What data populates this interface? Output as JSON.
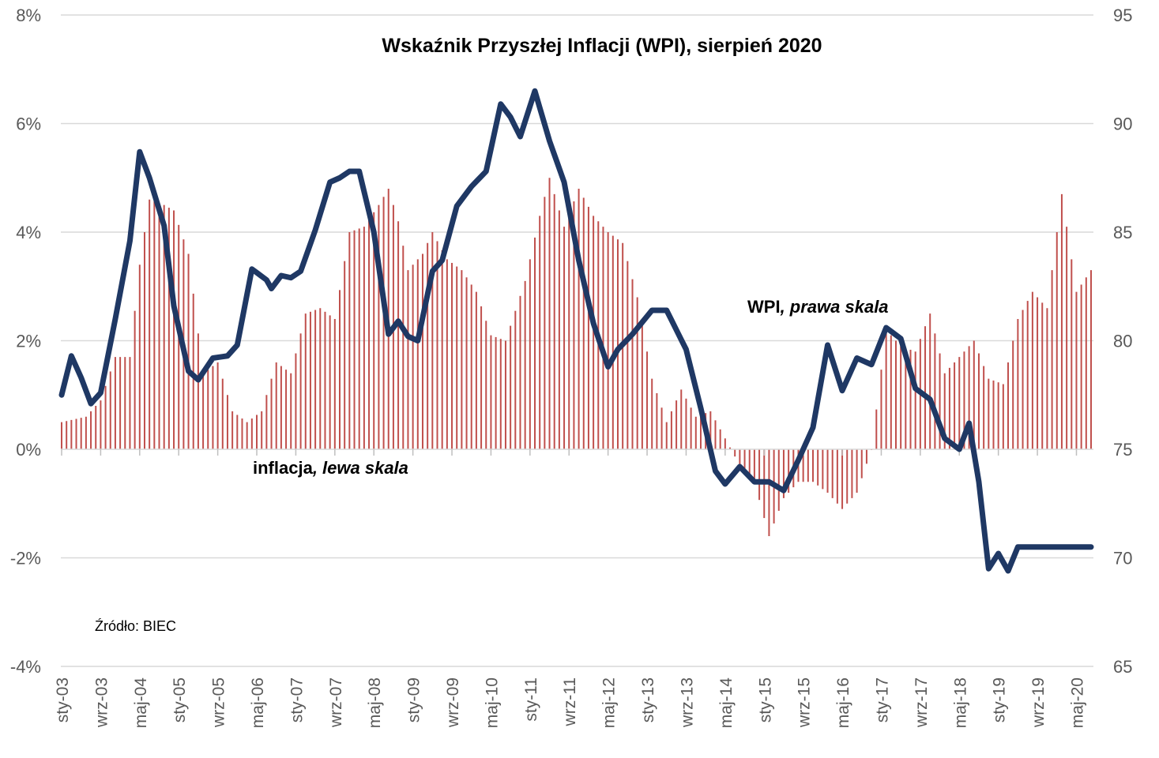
{
  "chart_data": {
    "type": "bar+line",
    "title": "Wskaźnik Przyszłej Inflacji (WPI), sierpień 2020",
    "source_label": "Źródło: BIEC",
    "series_labels": [
      {
        "name": "WPI",
        "suffix": ", prawa skala"
      },
      {
        "name": "inflacja",
        "suffix": ", lewa skala"
      }
    ],
    "y_left": {
      "min": -4,
      "max": 8,
      "step": 2,
      "ticks": [
        "-4%",
        "-2%",
        "0%",
        "2%",
        "4%",
        "6%",
        "8%"
      ]
    },
    "y_right": {
      "min": 65,
      "max": 95,
      "step": 5,
      "ticks": [
        "65",
        "70",
        "75",
        "80",
        "85",
        "90",
        "95"
      ]
    },
    "x_start": "2003-01",
    "x_end": "2020-08",
    "x_tick_labels": [
      "sty-03",
      "wrz-03",
      "maj-04",
      "sty-05",
      "wrz-05",
      "maj-06",
      "sty-07",
      "wrz-07",
      "maj-08",
      "sty-09",
      "wrz-09",
      "maj-10",
      "sty-11",
      "wrz-11",
      "maj-12",
      "sty-13",
      "wrz-13",
      "maj-14",
      "sty-15",
      "wrz-15",
      "maj-16",
      "sty-17",
      "wrz-17",
      "maj-18",
      "sty-19",
      "wrz-19",
      "maj-20"
    ],
    "inflation_anchors": [
      [
        "2003-01",
        0.5
      ],
      [
        "2003-06",
        0.6
      ],
      [
        "2003-09",
        0.9
      ],
      [
        "2003-12",
        1.7
      ],
      [
        "2004-03",
        1.7
      ],
      [
        "2004-05",
        3.4
      ],
      [
        "2004-07",
        4.6
      ],
      [
        "2004-10",
        4.5
      ],
      [
        "2004-12",
        4.4
      ],
      [
        "2005-03",
        3.6
      ],
      [
        "2005-06",
        1.4
      ],
      [
        "2005-09",
        1.6
      ],
      [
        "2005-12",
        0.7
      ],
      [
        "2006-03",
        0.5
      ],
      [
        "2006-06",
        0.7
      ],
      [
        "2006-09",
        1.6
      ],
      [
        "2006-12",
        1.4
      ],
      [
        "2007-03",
        2.5
      ],
      [
        "2007-06",
        2.6
      ],
      [
        "2007-09",
        2.4
      ],
      [
        "2007-12",
        4.0
      ],
      [
        "2008-03",
        4.1
      ],
      [
        "2008-06",
        4.5
      ],
      [
        "2008-08",
        4.8
      ],
      [
        "2008-10",
        4.2
      ],
      [
        "2008-12",
        3.3
      ],
      [
        "2009-03",
        3.6
      ],
      [
        "2009-05",
        4.0
      ],
      [
        "2009-08",
        3.5
      ],
      [
        "2009-11",
        3.3
      ],
      [
        "2010-02",
        2.9
      ],
      [
        "2010-05",
        2.1
      ],
      [
        "2010-08",
        2.0
      ],
      [
        "2010-12",
        3.1
      ],
      [
        "2011-03",
        4.3
      ],
      [
        "2011-05",
        5.0
      ],
      [
        "2011-08",
        4.1
      ],
      [
        "2011-11",
        4.8
      ],
      [
        "2012-02",
        4.3
      ],
      [
        "2012-05",
        4.0
      ],
      [
        "2012-08",
        3.8
      ],
      [
        "2012-11",
        2.8
      ],
      [
        "2013-02",
        1.3
      ],
      [
        "2013-05",
        0.5
      ],
      [
        "2013-08",
        1.1
      ],
      [
        "2013-11",
        0.6
      ],
      [
        "2014-02",
        0.7
      ],
      [
        "2014-05",
        0.2
      ],
      [
        "2014-08",
        -0.3
      ],
      [
        "2014-11",
        -0.6
      ],
      [
        "2015-02",
        -1.6
      ],
      [
        "2015-05",
        -0.9
      ],
      [
        "2015-08",
        -0.6
      ],
      [
        "2015-11",
        -0.6
      ],
      [
        "2016-02",
        -0.8
      ],
      [
        "2016-05",
        -1.1
      ],
      [
        "2016-08",
        -0.8
      ],
      [
        "2016-11",
        0.0
      ],
      [
        "2017-02",
        2.2
      ],
      [
        "2017-05",
        1.9
      ],
      [
        "2017-08",
        1.8
      ],
      [
        "2017-11",
        2.5
      ],
      [
        "2018-02",
        1.4
      ],
      [
        "2018-05",
        1.7
      ],
      [
        "2018-08",
        2.0
      ],
      [
        "2018-11",
        1.3
      ],
      [
        "2019-02",
        1.2
      ],
      [
        "2019-05",
        2.4
      ],
      [
        "2019-08",
        2.9
      ],
      [
        "2019-11",
        2.6
      ],
      [
        "2020-02",
        4.7
      ],
      [
        "2020-05",
        2.9
      ],
      [
        "2020-08",
        3.3
      ]
    ],
    "wpi_anchors": [
      [
        "2003-01",
        77.5
      ],
      [
        "2003-03",
        79.3
      ],
      [
        "2003-05",
        78.3
      ],
      [
        "2003-07",
        77.1
      ],
      [
        "2003-09",
        77.6
      ],
      [
        "2003-12",
        81.0
      ],
      [
        "2004-03",
        84.6
      ],
      [
        "2004-05",
        88.7
      ],
      [
        "2004-07",
        87.5
      ],
      [
        "2004-10",
        85.3
      ],
      [
        "2004-12",
        81.6
      ],
      [
        "2005-03",
        78.6
      ],
      [
        "2005-05",
        78.2
      ],
      [
        "2005-08",
        79.2
      ],
      [
        "2005-11",
        79.3
      ],
      [
        "2006-01",
        79.8
      ],
      [
        "2006-04",
        83.3
      ],
      [
        "2006-07",
        82.8
      ],
      [
        "2006-08",
        82.4
      ],
      [
        "2006-10",
        83.0
      ],
      [
        "2006-12",
        82.9
      ],
      [
        "2007-02",
        83.2
      ],
      [
        "2007-05",
        85.1
      ],
      [
        "2007-08",
        87.3
      ],
      [
        "2007-10",
        87.5
      ],
      [
        "2007-12",
        87.8
      ],
      [
        "2008-02",
        87.8
      ],
      [
        "2008-05",
        85.0
      ],
      [
        "2008-08",
        80.3
      ],
      [
        "2008-10",
        80.9
      ],
      [
        "2008-12",
        80.2
      ],
      [
        "2009-02",
        80.0
      ],
      [
        "2009-05",
        83.2
      ],
      [
        "2009-07",
        83.7
      ],
      [
        "2009-10",
        86.2
      ],
      [
        "2010-01",
        87.1
      ],
      [
        "2010-04",
        87.8
      ],
      [
        "2010-07",
        90.9
      ],
      [
        "2010-09",
        90.3
      ],
      [
        "2010-11",
        89.4
      ],
      [
        "2011-02",
        91.5
      ],
      [
        "2011-05",
        89.2
      ],
      [
        "2011-08",
        87.3
      ],
      [
        "2011-11",
        83.7
      ],
      [
        "2012-02",
        80.8
      ],
      [
        "2012-05",
        78.8
      ],
      [
        "2012-07",
        79.6
      ],
      [
        "2012-10",
        80.3
      ],
      [
        "2013-02",
        81.4
      ],
      [
        "2013-05",
        81.4
      ],
      [
        "2013-09",
        79.6
      ],
      [
        "2013-12",
        76.9
      ],
      [
        "2014-03",
        74.0
      ],
      [
        "2014-05",
        73.4
      ],
      [
        "2014-08",
        74.2
      ],
      [
        "2014-11",
        73.5
      ],
      [
        "2015-02",
        73.5
      ],
      [
        "2015-05",
        73.1
      ],
      [
        "2015-08",
        74.5
      ],
      [
        "2015-11",
        76.0
      ],
      [
        "2016-02",
        79.8
      ],
      [
        "2016-05",
        77.7
      ],
      [
        "2016-08",
        79.2
      ],
      [
        "2016-11",
        78.9
      ],
      [
        "2017-02",
        80.6
      ],
      [
        "2017-05",
        80.1
      ],
      [
        "2017-08",
        77.8
      ],
      [
        "2017-11",
        77.3
      ],
      [
        "2018-02",
        75.5
      ],
      [
        "2018-05",
        75.0
      ],
      [
        "2018-07",
        76.2
      ],
      [
        "2018-09",
        73.5
      ],
      [
        "2018-11",
        69.5
      ],
      [
        "2019-01",
        70.2
      ],
      [
        "2019-03",
        69.4
      ],
      [
        "2019-05",
        70.5
      ]
    ]
  }
}
